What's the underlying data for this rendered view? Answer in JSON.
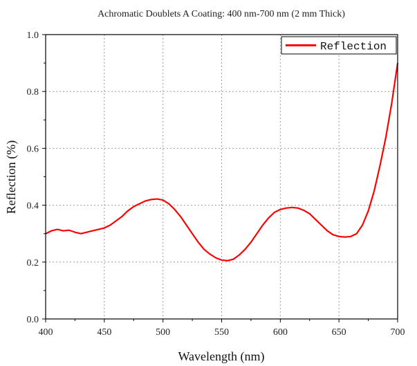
{
  "chart_data": {
    "type": "line",
    "title": "Achromatic Doublets A Coating: 400 nm-700 nm (2 mm Thick)",
    "xlabel": "Wavelength (nm)",
    "ylabel": "Reflection (%)",
    "xlim": [
      400,
      700
    ],
    "ylim": [
      0.0,
      1.0
    ],
    "xticks": [
      400,
      450,
      500,
      550,
      600,
      650,
      700
    ],
    "xtick_labels": [
      "400",
      "450",
      "500",
      "550",
      "600",
      "650",
      "700"
    ],
    "yticks": [
      0.0,
      0.2,
      0.4,
      0.6,
      0.8,
      1.0
    ],
    "ytick_labels": [
      "0.0",
      "0.2",
      "0.4",
      "0.6",
      "0.8",
      "1.0"
    ],
    "grid": true,
    "legend_position": "top-right",
    "series": [
      {
        "name": "Reflection",
        "color": "#ff0000",
        "x": [
          400,
          405,
          410,
          415,
          420,
          425,
          430,
          435,
          440,
          445,
          450,
          455,
          460,
          465,
          470,
          475,
          480,
          485,
          490,
          495,
          500,
          505,
          510,
          515,
          520,
          525,
          530,
          535,
          540,
          545,
          550,
          555,
          560,
          565,
          570,
          575,
          580,
          585,
          590,
          595,
          600,
          605,
          610,
          615,
          620,
          625,
          630,
          635,
          640,
          645,
          650,
          655,
          660,
          665,
          670,
          675,
          680,
          685,
          690,
          695,
          700
        ],
        "y": [
          0.3,
          0.31,
          0.315,
          0.31,
          0.312,
          0.305,
          0.3,
          0.305,
          0.31,
          0.315,
          0.32,
          0.33,
          0.345,
          0.36,
          0.38,
          0.395,
          0.405,
          0.415,
          0.42,
          0.422,
          0.418,
          0.405,
          0.385,
          0.36,
          0.33,
          0.3,
          0.27,
          0.245,
          0.228,
          0.215,
          0.207,
          0.205,
          0.21,
          0.225,
          0.245,
          0.27,
          0.3,
          0.33,
          0.355,
          0.375,
          0.385,
          0.39,
          0.392,
          0.39,
          0.382,
          0.37,
          0.35,
          0.33,
          0.31,
          0.296,
          0.29,
          0.288,
          0.29,
          0.3,
          0.33,
          0.38,
          0.45,
          0.54,
          0.64,
          0.76,
          0.9
        ]
      }
    ]
  }
}
